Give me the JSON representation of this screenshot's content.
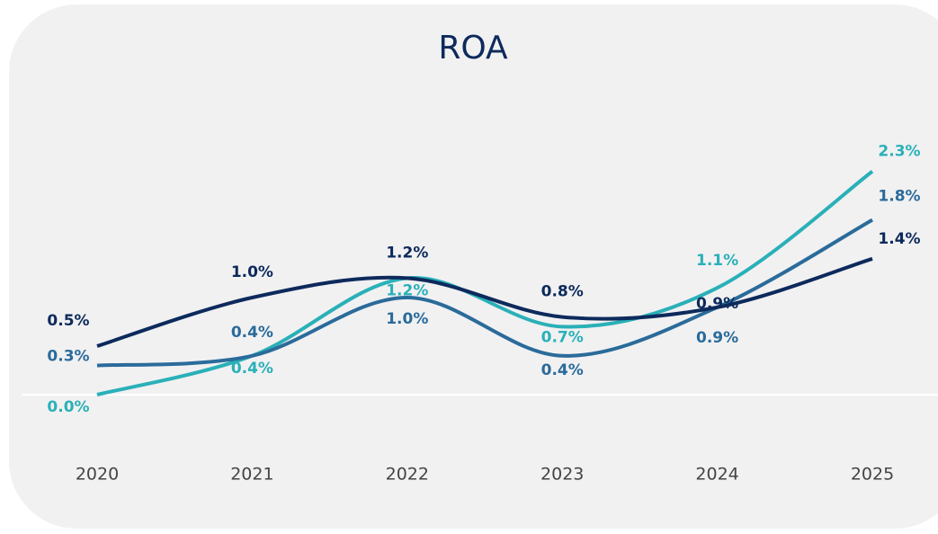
{
  "chart_data": {
    "type": "line",
    "title": "ROA",
    "categories": [
      "2020",
      "2021",
      "2022",
      "2023",
      "2024",
      "2025"
    ],
    "series": [
      {
        "color": "#2ab0b8",
        "values": [
          0.0,
          0.4,
          1.2,
          0.7,
          1.1,
          2.3
        ],
        "value_labels": [
          "0.0%",
          "0.4%",
          "1.2%",
          "0.7%",
          "1.1%",
          "2.3%"
        ]
      },
      {
        "color": "#2a6b9a",
        "values": [
          0.3,
          0.4,
          1.0,
          0.4,
          0.9,
          1.8
        ],
        "value_labels": [
          "0.3%",
          "0.4%",
          "1.0%",
          "0.4%",
          "0.9%",
          "1.8%"
        ]
      },
      {
        "color": "#0d2a5c",
        "values": [
          0.5,
          1.0,
          1.2,
          0.8,
          0.9,
          1.4
        ],
        "value_labels": [
          "0.5%",
          "1.0%",
          "1.2%",
          "0.8%",
          "0.9%",
          "1.4%"
        ]
      }
    ],
    "ylim": [
      0,
      2.5
    ]
  }
}
